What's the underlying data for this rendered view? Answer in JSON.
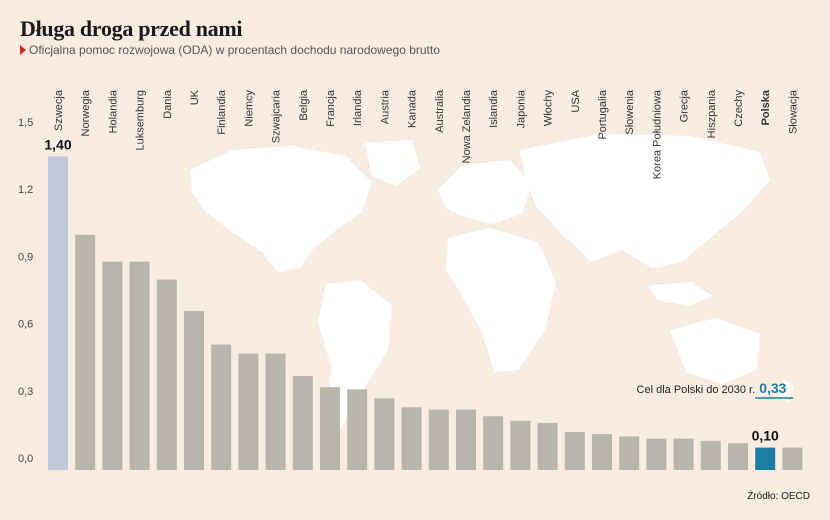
{
  "title": "Długa droga przed nami",
  "subtitle": "Oficjalna pomoc rozwojowa (ODA) w procentach dochodu narodowego brutto",
  "source": "Źródło: OECD",
  "colors": {
    "background": "#f8ece1",
    "bar": "#b8b5ab",
    "highlight_first": "#bfc9d9",
    "highlight_poland": "#1f7ca3",
    "target_line": "#1f7ca3",
    "target_value_color": "#1f7ca3",
    "map": "#ffffff",
    "source_marker": "#d9261c"
  },
  "chart_data": {
    "type": "bar",
    "categories": [
      "Szwecja",
      "Norwegia",
      "Holandia",
      "Luksemburg",
      "Dania",
      "UK",
      "Finlandia",
      "Niemcy",
      "Szwajcaria",
      "Belgia",
      "Francja",
      "Irlandia",
      "Austria",
      "Kanada",
      "Australia",
      "Nowa Zelandia",
      "Islandia",
      "Japonia",
      "Włochy",
      "USA",
      "Portugalia",
      "Słowenia",
      "Korea Południowa",
      "Grecja",
      "Hiszpania",
      "Czechy",
      "Polska",
      "Słowacja"
    ],
    "values": [
      1.4,
      1.05,
      0.93,
      0.93,
      0.85,
      0.71,
      0.56,
      0.52,
      0.52,
      0.42,
      0.37,
      0.36,
      0.32,
      0.28,
      0.27,
      0.27,
      0.24,
      0.22,
      0.21,
      0.17,
      0.16,
      0.15,
      0.14,
      0.14,
      0.13,
      0.12,
      0.1,
      0.1
    ],
    "data_labels": [
      {
        "category": "Szwecja",
        "text": "1,40"
      },
      {
        "category": "Polska",
        "text": "0,10"
      }
    ],
    "highlight": {
      "Szwecja": "highlight_first",
      "Polska": "highlight_poland"
    },
    "bold_categories": [
      "Polska"
    ],
    "y_ticks": [
      "0,0",
      "0,3",
      "0,6",
      "0,9",
      "1,2",
      "1,5"
    ],
    "ylim": [
      0,
      1.5
    ],
    "grid": false,
    "target": {
      "label": "Cel dla Polski do 2030 r.",
      "value_text": "0,33",
      "value": 0.33
    }
  }
}
